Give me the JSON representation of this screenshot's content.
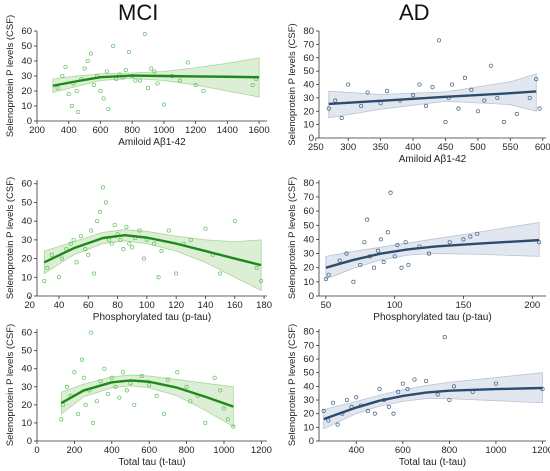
{
  "column_titles": [
    "MCI",
    "AD"
  ],
  "colors": {
    "MCI": {
      "line": "#1b8a1b",
      "band": "#dcefd4",
      "band_stroke": "#a9d59a",
      "points": "#5cbf5c"
    },
    "AD": {
      "line": "#2b4c6f",
      "band": "#e2e7ef",
      "band_stroke": "#b8c4d3",
      "points": "#3d5f82"
    }
  },
  "chart_data": [
    {
      "type": "scatter",
      "group": "MCI",
      "xlabel": "Amiloid Aβ1-42",
      "ylabel": "Selenoprotein P levels (CSF)",
      "xlim": [
        200,
        1650
      ],
      "ylim": [
        0,
        60
      ],
      "xticks": [
        200,
        400,
        600,
        800,
        1000,
        1200,
        1400,
        1600
      ],
      "yticks": [
        0,
        10,
        20,
        30,
        40,
        50,
        60
      ],
      "points": [
        [
          330,
          22
        ],
        [
          360,
          30
        ],
        [
          380,
          36
        ],
        [
          400,
          18
        ],
        [
          420,
          10
        ],
        [
          430,
          25
        ],
        [
          450,
          20
        ],
        [
          460,
          6
        ],
        [
          480,
          28
        ],
        [
          500,
          35
        ],
        [
          520,
          40
        ],
        [
          540,
          45
        ],
        [
          560,
          24
        ],
        [
          580,
          30
        ],
        [
          600,
          20
        ],
        [
          620,
          15
        ],
        [
          640,
          33
        ],
        [
          650,
          8
        ],
        [
          680,
          50
        ],
        [
          700,
          28
        ],
        [
          720,
          31
        ],
        [
          740,
          29
        ],
        [
          760,
          34
        ],
        [
          780,
          46
        ],
        [
          800,
          30
        ],
        [
          820,
          27
        ],
        [
          850,
          27
        ],
        [
          880,
          58
        ],
        [
          900,
          22
        ],
        [
          920,
          35
        ],
        [
          940,
          33
        ],
        [
          960,
          25
        ],
        [
          1000,
          11
        ],
        [
          1050,
          30
        ],
        [
          1100,
          27
        ],
        [
          1150,
          39
        ],
        [
          1200,
          24
        ],
        [
          1250,
          20
        ],
        [
          1560,
          24
        ],
        [
          1580,
          28
        ]
      ],
      "fit": [
        [
          300,
          23.5
        ],
        [
          450,
          26.5
        ],
        [
          600,
          29.2
        ],
        [
          800,
          30.3
        ],
        [
          1000,
          30.0
        ],
        [
          1200,
          29.7
        ],
        [
          1400,
          29.5
        ],
        [
          1600,
          29.2
        ]
      ],
      "band": [
        [
          300,
          19,
          28
        ],
        [
          450,
          23,
          30
        ],
        [
          600,
          27,
          31.5
        ],
        [
          800,
          28.5,
          32
        ],
        [
          1000,
          27,
          33
        ],
        [
          1200,
          24,
          35.5
        ],
        [
          1400,
          20,
          38.5
        ],
        [
          1600,
          16,
          42
        ]
      ]
    },
    {
      "type": "scatter",
      "group": "AD",
      "xlabel": "Amiloid Aβ1-42",
      "ylabel": "Selenoprotein P levels (CSF)",
      "xlim": [
        255,
        605
      ],
      "ylim": [
        0,
        80
      ],
      "xticks": [
        250,
        300,
        350,
        400,
        450,
        500,
        550,
        600
      ],
      "yticks": [
        0,
        10,
        20,
        30,
        40,
        50,
        60,
        70,
        80
      ],
      "points": [
        [
          270,
          22
        ],
        [
          280,
          28
        ],
        [
          290,
          15
        ],
        [
          300,
          40
        ],
        [
          320,
          24
        ],
        [
          330,
          34
        ],
        [
          350,
          26
        ],
        [
          360,
          35
        ],
        [
          380,
          28
        ],
        [
          400,
          32
        ],
        [
          410,
          40
        ],
        [
          420,
          24
        ],
        [
          430,
          38
        ],
        [
          440,
          73
        ],
        [
          450,
          12
        ],
        [
          455,
          30
        ],
        [
          460,
          40
        ],
        [
          470,
          22
        ],
        [
          480,
          45
        ],
        [
          490,
          36
        ],
        [
          500,
          20
        ],
        [
          510,
          28
        ],
        [
          520,
          54
        ],
        [
          530,
          30
        ],
        [
          540,
          12
        ],
        [
          560,
          18
        ],
        [
          580,
          30
        ],
        [
          590,
          44
        ],
        [
          595,
          22
        ]
      ],
      "fit": [
        [
          270,
          25.5
        ],
        [
          350,
          27.8
        ],
        [
          450,
          30.8
        ],
        [
          550,
          33.5
        ],
        [
          590,
          34.8
        ]
      ],
      "band": [
        [
          270,
          15,
          35
        ],
        [
          350,
          21.5,
          32.5
        ],
        [
          450,
          27.5,
          34.5
        ],
        [
          550,
          25,
          42
        ],
        [
          590,
          20,
          48
        ]
      ]
    },
    {
      "type": "scatter",
      "group": "MCI",
      "xlabel": "Phosphorylated tau (p-tau)",
      "ylabel": "Selenoprotein P levels (CSF)",
      "xlim": [
        25,
        182
      ],
      "ylim": [
        0,
        62
      ],
      "xticks": [
        20,
        40,
        60,
        80,
        100,
        120,
        140,
        160,
        180
      ],
      "yticks": [
        0,
        10,
        20,
        30,
        40,
        50,
        60
      ],
      "points": [
        [
          30,
          8
        ],
        [
          32,
          15
        ],
        [
          35,
          22
        ],
        [
          40,
          10
        ],
        [
          42,
          20
        ],
        [
          45,
          25
        ],
        [
          48,
          28
        ],
        [
          50,
          30
        ],
        [
          52,
          18
        ],
        [
          55,
          32
        ],
        [
          58,
          25
        ],
        [
          60,
          22
        ],
        [
          62,
          35
        ],
        [
          64,
          12
        ],
        [
          66,
          40
        ],
        [
          68,
          45
        ],
        [
          70,
          58
        ],
        [
          72,
          50
        ],
        [
          74,
          30
        ],
        [
          76,
          28
        ],
        [
          78,
          38
        ],
        [
          80,
          33
        ],
        [
          82,
          30
        ],
        [
          84,
          25
        ],
        [
          86,
          37
        ],
        [
          88,
          28
        ],
        [
          90,
          26
        ],
        [
          92,
          31
        ],
        [
          95,
          35
        ],
        [
          98,
          20
        ],
        [
          100,
          30
        ],
        [
          105,
          28
        ],
        [
          108,
          10
        ],
        [
          110,
          24
        ],
        [
          115,
          35
        ],
        [
          120,
          12
        ],
        [
          125,
          28
        ],
        [
          130,
          30
        ],
        [
          140,
          36
        ],
        [
          145,
          22
        ],
        [
          150,
          12
        ],
        [
          160,
          40
        ],
        [
          175,
          15
        ],
        [
          178,
          8
        ]
      ],
      "fit": [
        [
          30,
          18
        ],
        [
          50,
          25.5
        ],
        [
          70,
          31
        ],
        [
          85,
          32.5
        ],
        [
          100,
          31.2
        ],
        [
          120,
          28
        ],
        [
          140,
          24
        ],
        [
          160,
          20
        ],
        [
          178,
          16.5
        ]
      ],
      "band": [
        [
          30,
          12,
          24
        ],
        [
          50,
          22,
          29
        ],
        [
          70,
          28,
          34
        ],
        [
          85,
          29.5,
          35.5
        ],
        [
          100,
          28,
          34.5
        ],
        [
          120,
          24,
          32
        ],
        [
          140,
          18,
          30
        ],
        [
          160,
          10,
          29
        ],
        [
          178,
          3,
          30
        ]
      ]
    },
    {
      "type": "scatter",
      "group": "AD",
      "xlabel": "Phosphorylated tau (p-tau)",
      "ylabel": "Selenoprotein P levels (CSF)",
      "xlim": [
        45,
        210
      ],
      "ylim": [
        0,
        82
      ],
      "xticks": [
        50,
        100,
        150,
        200
      ],
      "yticks": [
        0,
        10,
        20,
        30,
        40,
        50,
        60,
        70,
        80
      ],
      "points": [
        [
          50,
          12
        ],
        [
          52,
          15
        ],
        [
          60,
          25
        ],
        [
          65,
          30
        ],
        [
          70,
          10
        ],
        [
          75,
          22
        ],
        [
          78,
          38
        ],
        [
          80,
          54
        ],
        [
          82,
          28
        ],
        [
          85,
          20
        ],
        [
          88,
          32
        ],
        [
          90,
          40
        ],
        [
          92,
          24
        ],
        [
          95,
          45
        ],
        [
          97,
          73
        ],
        [
          100,
          28
        ],
        [
          102,
          36
        ],
        [
          105,
          20
        ],
        [
          108,
          38
        ],
        [
          110,
          22
        ],
        [
          118,
          35
        ],
        [
          125,
          30
        ],
        [
          140,
          38
        ],
        [
          150,
          40
        ],
        [
          155,
          42
        ],
        [
          160,
          44
        ],
        [
          205,
          38
        ]
      ],
      "fit": [
        [
          50,
          20
        ],
        [
          70,
          25.5
        ],
        [
          90,
          30
        ],
        [
          110,
          33
        ],
        [
          130,
          35
        ],
        [
          160,
          37
        ],
        [
          205,
          39.5
        ]
      ],
      "band": [
        [
          50,
          12,
          28
        ],
        [
          70,
          19.5,
          31.5
        ],
        [
          90,
          25.5,
          34.5
        ],
        [
          110,
          29,
          37.5
        ],
        [
          130,
          30,
          40.5
        ],
        [
          160,
          29.5,
          45
        ],
        [
          205,
          28,
          52
        ]
      ]
    },
    {
      "type": "scatter",
      "group": "MCI",
      "xlabel": "Total tau (t-tau)",
      "ylabel": "Selenoprotein P levels (CSF)",
      "xlim": [
        0,
        1230
      ],
      "ylim": [
        0,
        62
      ],
      "xticks": [
        0,
        200,
        400,
        600,
        800,
        1000,
        1200
      ],
      "yticks": [
        0,
        10,
        20,
        30,
        40,
        50,
        60
      ],
      "points": [
        [
          130,
          12
        ],
        [
          140,
          20
        ],
        [
          160,
          30
        ],
        [
          180,
          25
        ],
        [
          200,
          38
        ],
        [
          220,
          15
        ],
        [
          240,
          45
        ],
        [
          250,
          35
        ],
        [
          260,
          20
        ],
        [
          280,
          28
        ],
        [
          290,
          60
        ],
        [
          300,
          10
        ],
        [
          320,
          22
        ],
        [
          340,
          33
        ],
        [
          360,
          40
        ],
        [
          380,
          26
        ],
        [
          400,
          35
        ],
        [
          420,
          30
        ],
        [
          440,
          24
        ],
        [
          460,
          38
        ],
        [
          480,
          28
        ],
        [
          500,
          32
        ],
        [
          520,
          20
        ],
        [
          560,
          36
        ],
        [
          600,
          31
        ],
        [
          640,
          25
        ],
        [
          680,
          15
        ],
        [
          700,
          34
        ],
        [
          750,
          38
        ],
        [
          800,
          30
        ],
        [
          820,
          22
        ],
        [
          860,
          25
        ],
        [
          900,
          10
        ],
        [
          950,
          35
        ],
        [
          980,
          28
        ],
        [
          1000,
          18
        ],
        [
          1020,
          12
        ],
        [
          1050,
          8
        ]
      ],
      "fit": [
        [
          130,
          21
        ],
        [
          250,
          28
        ],
        [
          400,
          32.5
        ],
        [
          500,
          33.5
        ],
        [
          600,
          32.8
        ],
        [
          750,
          29.5
        ],
        [
          900,
          24.5
        ],
        [
          1050,
          19
        ]
      ],
      "band": [
        [
          130,
          15,
          27
        ],
        [
          250,
          24.5,
          31.5
        ],
        [
          400,
          29.5,
          35.5
        ],
        [
          500,
          30.5,
          36.5
        ],
        [
          600,
          29.5,
          36
        ],
        [
          750,
          25,
          34
        ],
        [
          900,
          17,
          32
        ],
        [
          1050,
          8,
          30
        ]
      ]
    },
    {
      "type": "scatter",
      "group": "AD",
      "xlabel": "Total tau (t-tau)",
      "ylabel": "Selenoprotein P levels (CSF)",
      "xlim": [
        240,
        1215
      ],
      "ylim": [
        0,
        82
      ],
      "xticks": [
        400,
        600,
        800,
        1000,
        1200
      ],
      "yticks": [
        0,
        10,
        20,
        30,
        40,
        50,
        60,
        70,
        80
      ],
      "points": [
        [
          260,
          22
        ],
        [
          280,
          15
        ],
        [
          300,
          28
        ],
        [
          320,
          12
        ],
        [
          340,
          20
        ],
        [
          360,
          30
        ],
        [
          380,
          25
        ],
        [
          400,
          32
        ],
        [
          420,
          26
        ],
        [
          450,
          22
        ],
        [
          480,
          20
        ],
        [
          500,
          38
        ],
        [
          520,
          30
        ],
        [
          540,
          25
        ],
        [
          560,
          20
        ],
        [
          580,
          36
        ],
        [
          600,
          42
        ],
        [
          620,
          38
        ],
        [
          650,
          45
        ],
        [
          700,
          44
        ],
        [
          750,
          34
        ],
        [
          780,
          76
        ],
        [
          800,
          30
        ],
        [
          820,
          40
        ],
        [
          900,
          36
        ],
        [
          1000,
          42
        ],
        [
          1200,
          38
        ]
      ],
      "fit": [
        [
          260,
          16
        ],
        [
          400,
          24.5
        ],
        [
          500,
          29.5
        ],
        [
          600,
          33
        ],
        [
          700,
          35.5
        ],
        [
          800,
          36.8
        ],
        [
          1000,
          38
        ],
        [
          1200,
          38.8
        ]
      ],
      "band": [
        [
          260,
          9,
          23
        ],
        [
          400,
          20,
          29
        ],
        [
          500,
          25.5,
          33.5
        ],
        [
          600,
          29,
          37.5
        ],
        [
          700,
          31,
          40.5
        ],
        [
          800,
          31,
          43
        ],
        [
          1000,
          29.5,
          46.5
        ],
        [
          1200,
          28,
          50
        ]
      ]
    }
  ]
}
